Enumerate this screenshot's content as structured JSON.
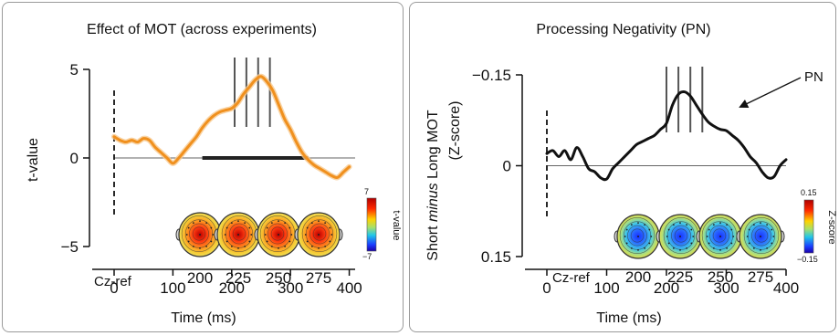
{
  "chart_data": [
    {
      "type": "line",
      "title": "Effect of MOT (across experiments)",
      "xlabel": "Time (ms)",
      "ylabel": "t-value",
      "xlim": [
        0,
        410
      ],
      "ylim": [
        -5,
        5
      ],
      "x_ticks": [
        "0",
        "100",
        "200",
        "300",
        "400"
      ],
      "y_ticks": [
        "5",
        "0",
        "−5"
      ],
      "reference_label": "Cz-ref",
      "series": [
        {
          "color": "#f0901e",
          "x": [
            0,
            10,
            20,
            30,
            40,
            50,
            60,
            70,
            80,
            90,
            100,
            110,
            120,
            130,
            140,
            150,
            160,
            170,
            180,
            190,
            200,
            210,
            220,
            230,
            240,
            250,
            260,
            270,
            280,
            290,
            300,
            310,
            320,
            330,
            340,
            350,
            360,
            370,
            380,
            390,
            400
          ],
          "y": [
            1.2,
            1.0,
            0.9,
            1.0,
            0.9,
            1.1,
            1.0,
            0.6,
            0.3,
            0.0,
            -0.3,
            0.0,
            0.4,
            0.8,
            1.2,
            1.7,
            2.1,
            2.4,
            2.6,
            2.7,
            2.8,
            3.1,
            3.6,
            4.0,
            4.4,
            4.6,
            4.3,
            3.8,
            3.0,
            2.2,
            1.6,
            0.9,
            0.3,
            -0.1,
            -0.4,
            -0.6,
            -0.8,
            -1.0,
            -1.1,
            -0.8,
            -0.5
          ]
        }
      ],
      "significance_bar": {
        "start": 150,
        "end": 330
      },
      "highlight_times": [
        205,
        225,
        245,
        265
      ],
      "topomaps": {
        "labels": [
          "200",
          "225",
          "250",
          "275"
        ],
        "colorbar_label": "t-value",
        "colorbar_ticks": [
          "7",
          "−7"
        ]
      }
    },
    {
      "type": "line",
      "title": "Processing Negativity (PN)",
      "xlabel": "Time (ms)",
      "ylabel_parts": [
        "Short ",
        "minus",
        " Long MOT"
      ],
      "ylabel_line2": "(Z-score)",
      "xlim": [
        0,
        400
      ],
      "ylim": [
        0.15,
        -0.15
      ],
      "x_ticks": [
        "0",
        "100",
        "200",
        "300",
        "400"
      ],
      "y_ticks": [
        "−0.15",
        "0",
        "0.15"
      ],
      "reference_label": "Cz-ref",
      "annotation": "PN",
      "series": [
        {
          "color": "#111111",
          "x": [
            0,
            10,
            20,
            30,
            40,
            50,
            60,
            70,
            80,
            90,
            100,
            110,
            120,
            130,
            140,
            150,
            160,
            170,
            180,
            190,
            200,
            210,
            220,
            230,
            240,
            250,
            260,
            270,
            280,
            290,
            300,
            310,
            320,
            330,
            340,
            350,
            360,
            370,
            380,
            390,
            400
          ],
          "y": [
            -0.02,
            -0.025,
            -0.015,
            -0.025,
            -0.01,
            -0.03,
            -0.015,
            0.005,
            0.01,
            0.02,
            0.022,
            0.005,
            -0.005,
            -0.015,
            -0.025,
            -0.035,
            -0.04,
            -0.045,
            -0.05,
            -0.06,
            -0.07,
            -0.1,
            -0.118,
            -0.122,
            -0.115,
            -0.1,
            -0.085,
            -0.072,
            -0.065,
            -0.06,
            -0.058,
            -0.05,
            -0.042,
            -0.03,
            -0.015,
            -0.005,
            0.01,
            0.02,
            0.018,
            0.0,
            -0.01
          ]
        }
      ],
      "highlight_times": [
        200,
        220,
        240,
        260
      ],
      "topomaps": {
        "labels": [
          "200",
          "225",
          "250",
          "275"
        ],
        "colorbar_label": "Z-score",
        "colorbar_ticks": [
          "0.15",
          "−0.15"
        ]
      }
    }
  ]
}
